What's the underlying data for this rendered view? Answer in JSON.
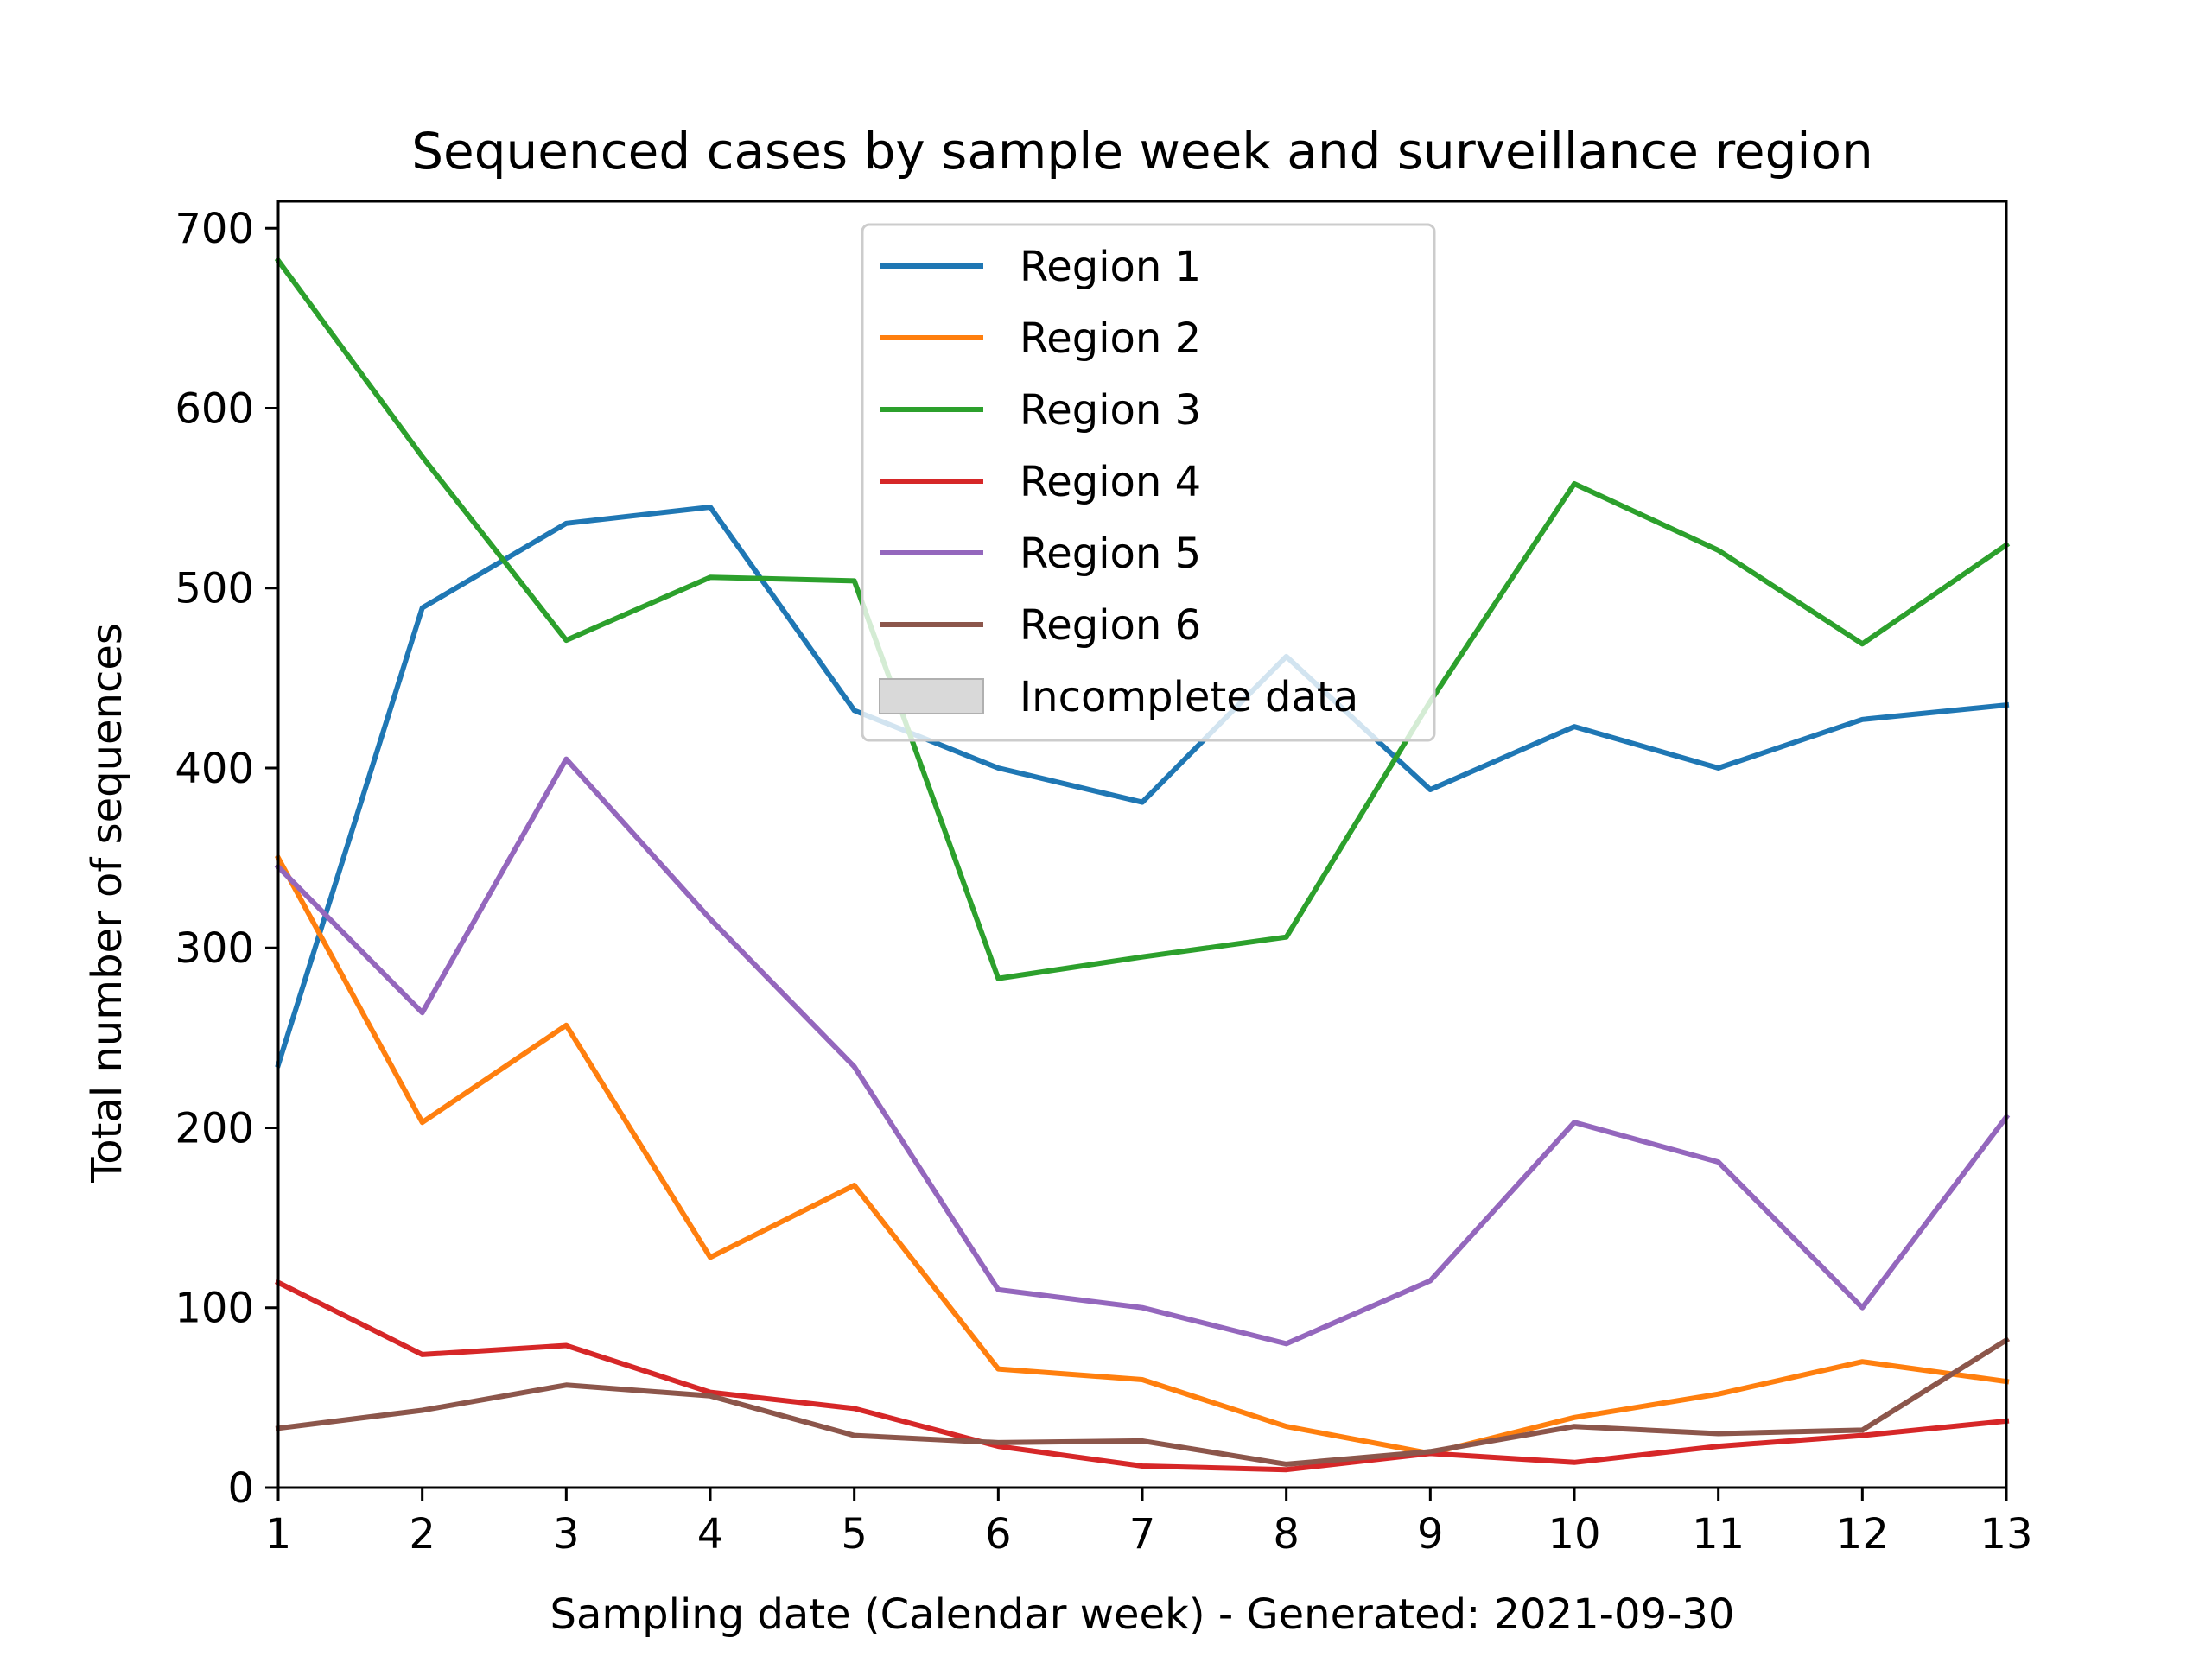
{
  "chart_data": {
    "type": "line",
    "title": "Sequenced cases by sample week and surveillance region",
    "xlabel": "Sampling date (Calendar week) - Generated: 2021-09-30",
    "ylabel": "Total number of sequences",
    "x": [
      1,
      2,
      3,
      4,
      5,
      6,
      7,
      8,
      9,
      10,
      11,
      12,
      13
    ],
    "xlim": [
      1,
      13
    ],
    "ylim": [
      0,
      715
    ],
    "xticks": [
      "1",
      "2",
      "3",
      "4",
      "5",
      "6",
      "7",
      "8",
      "9",
      "10",
      "11",
      "12",
      "13"
    ],
    "yticks": [
      0,
      100,
      200,
      300,
      400,
      500,
      600,
      700
    ],
    "ytick_labels": [
      "0",
      "100",
      "200",
      "300",
      "400",
      "500",
      "600",
      "700"
    ],
    "grid": false,
    "legend_position": "top-center",
    "series": [
      {
        "name": "Region 1",
        "color": "#1f77b4",
        "values": [
          235,
          489,
          536,
          545,
          432,
          400,
          381,
          462,
          388,
          423,
          400,
          427,
          435
        ]
      },
      {
        "name": "Region 2",
        "color": "#ff7f0e",
        "values": [
          350,
          203,
          257,
          128,
          168,
          66,
          60,
          34,
          19,
          39,
          52,
          70,
          59
        ]
      },
      {
        "name": "Region 3",
        "color": "#2ca02c",
        "values": [
          682,
          573,
          471,
          506,
          504,
          283,
          295,
          306,
          437,
          558,
          521,
          469,
          524
        ]
      },
      {
        "name": "Region 4",
        "color": "#d62728",
        "values": [
          114,
          74,
          79,
          53,
          44,
          23,
          12,
          10,
          19,
          14,
          23,
          29,
          37
        ]
      },
      {
        "name": "Region 5",
        "color": "#9467bd",
        "values": [
          345,
          264,
          405,
          316,
          234,
          110,
          100,
          80,
          115,
          203,
          181,
          100,
          206
        ]
      },
      {
        "name": "Region 6",
        "color": "#8c564b",
        "values": [
          33,
          43,
          57,
          51,
          29,
          25,
          26,
          13,
          20,
          34,
          30,
          32,
          82
        ]
      }
    ],
    "legend_patch": {
      "name": "Incomplete data",
      "color": "#d9d9d9"
    }
  }
}
